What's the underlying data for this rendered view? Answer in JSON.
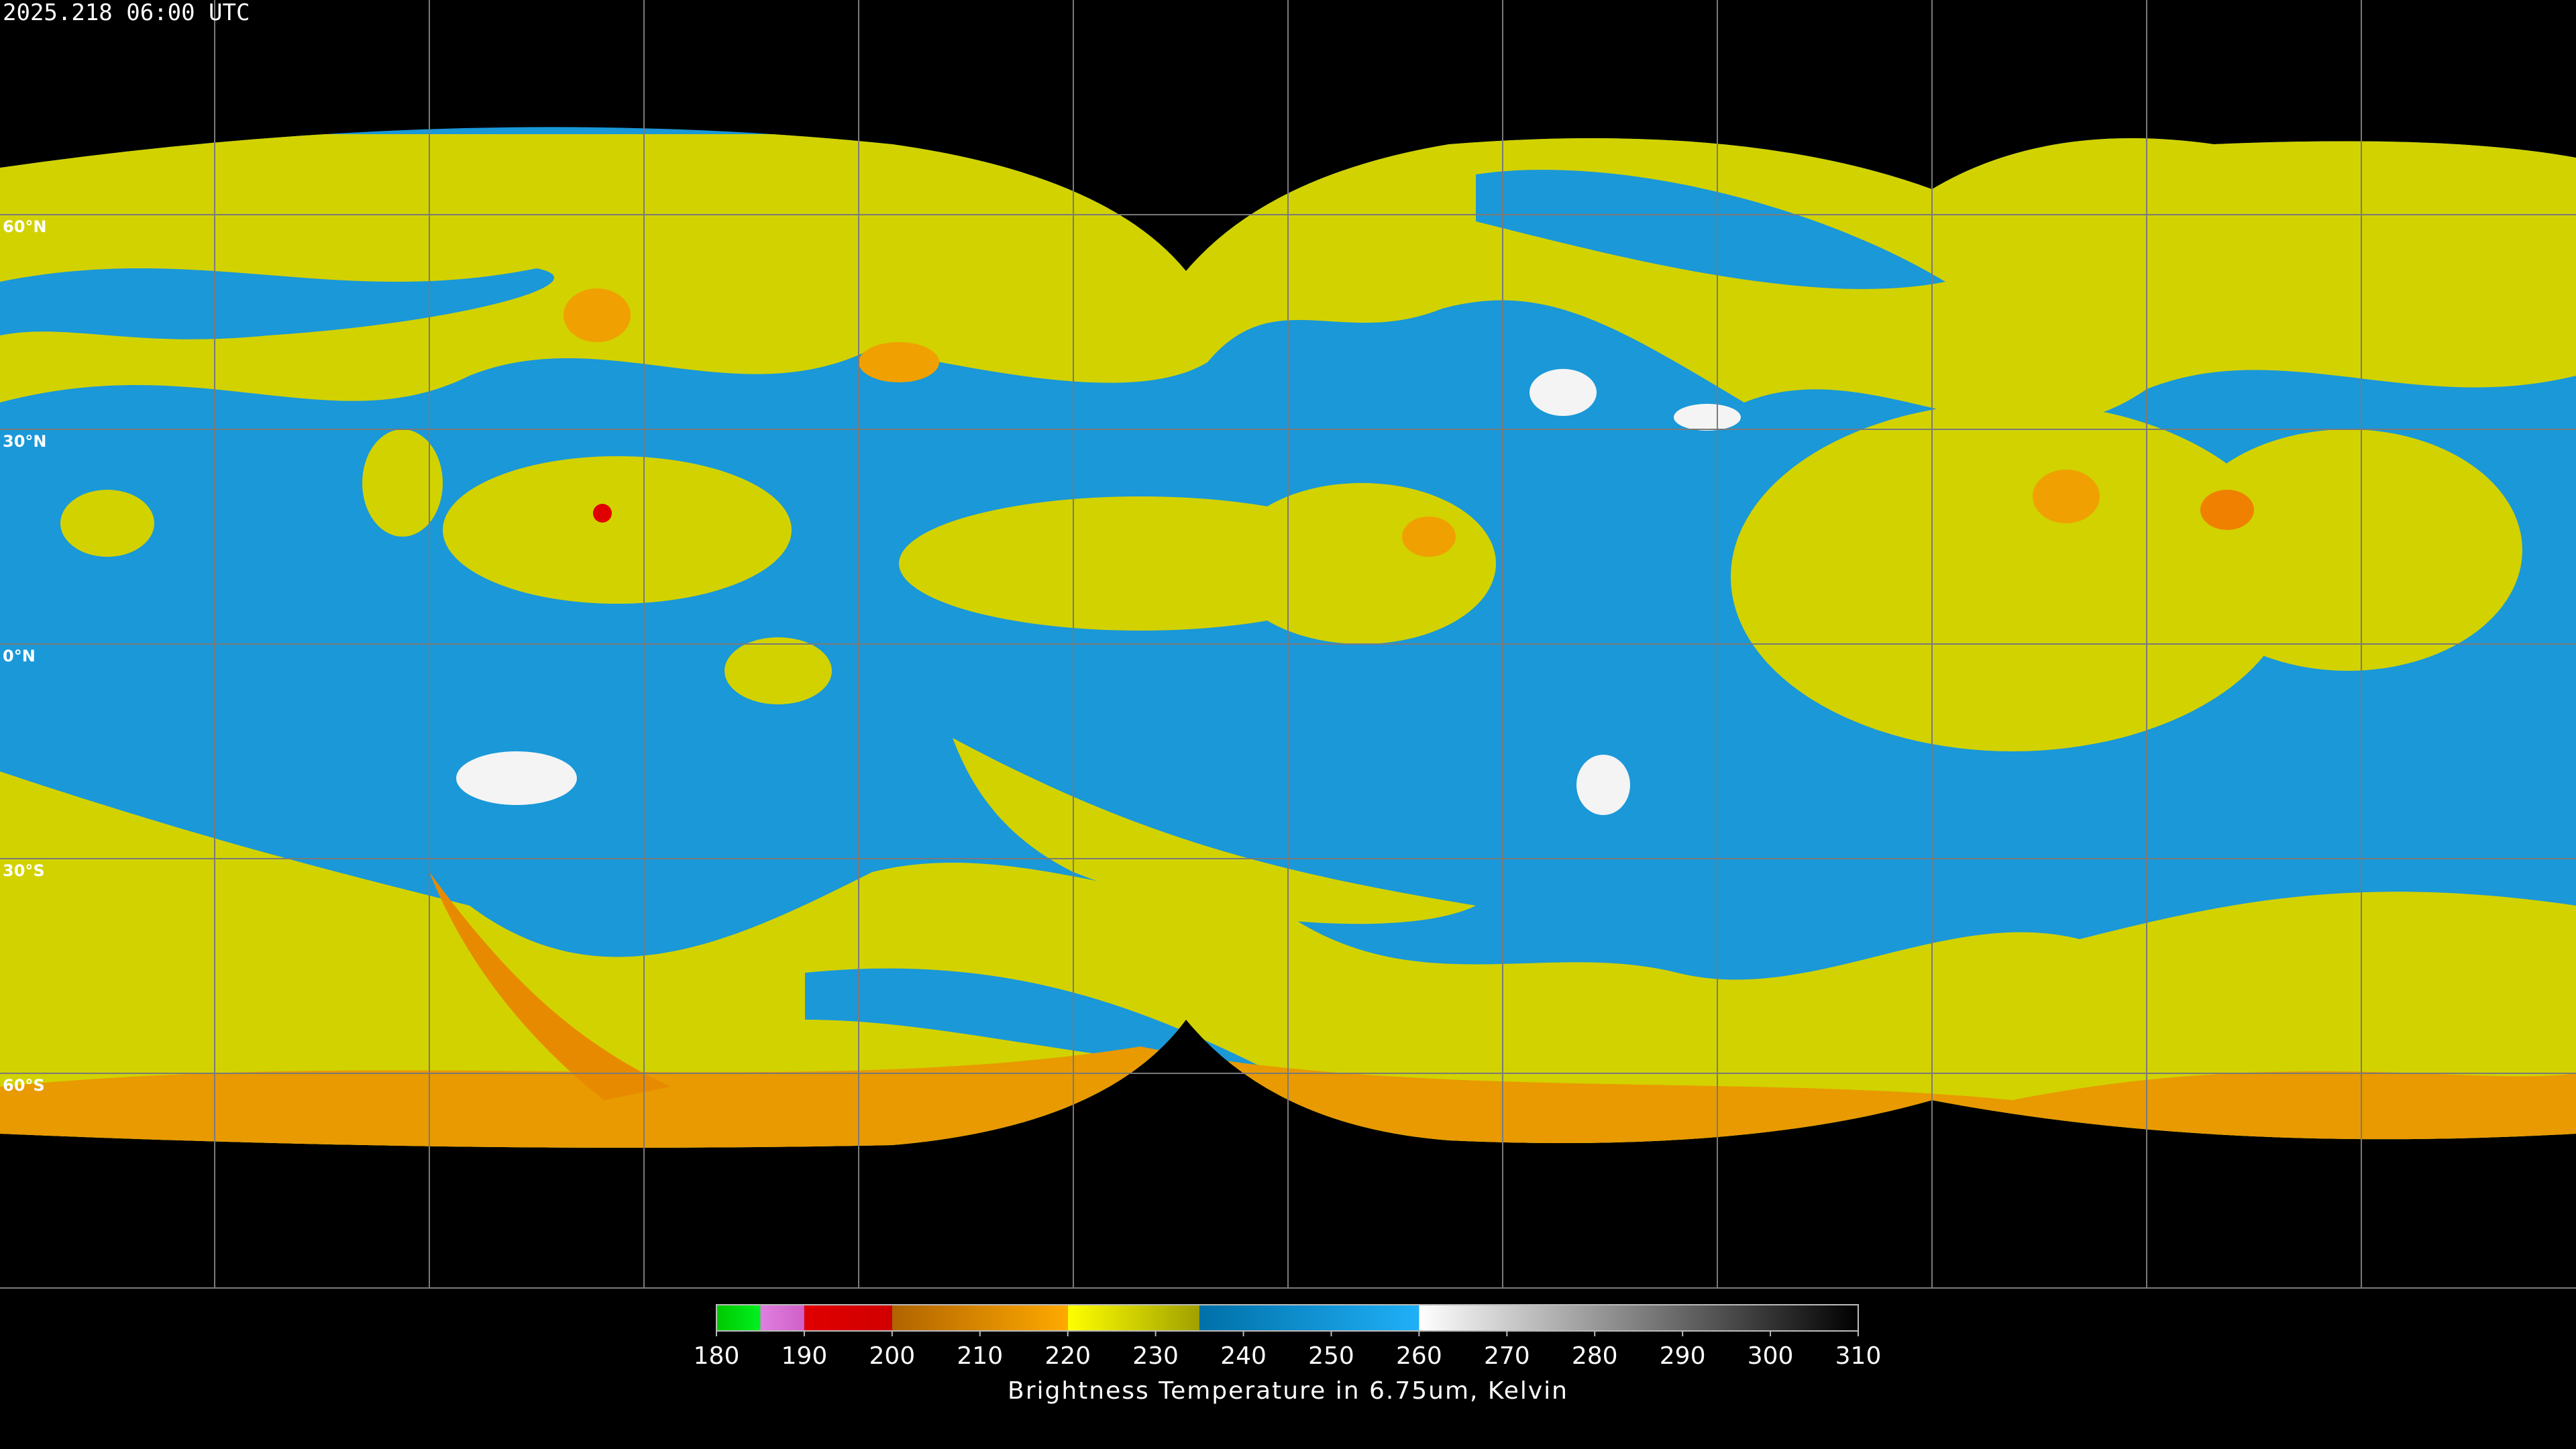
{
  "header": {
    "timestamp": "2025.218 06:00 UTC"
  },
  "map": {
    "latitudes": [
      {
        "value": 60,
        "label": "60°N"
      },
      {
        "value": 30,
        "label": "30°N"
      },
      {
        "value": 0,
        "label": "0°N"
      },
      {
        "value": -30,
        "label": "30°S"
      },
      {
        "value": -60,
        "label": "60°S"
      }
    ]
  },
  "colorbar": {
    "lim": [
      180,
      310
    ],
    "ticks": [
      180,
      190,
      200,
      210,
      220,
      230,
      240,
      250,
      260,
      270,
      280,
      290,
      300,
      310
    ],
    "segments": [
      {
        "from": 180,
        "to": 185,
        "colors": [
          "#00c800",
          "#00f020"
        ]
      },
      {
        "from": 185,
        "to": 190,
        "colors": [
          "#e080e0",
          "#d060c8"
        ]
      },
      {
        "from": 190,
        "to": 200,
        "colors": [
          "#e00000",
          "#d00000"
        ]
      },
      {
        "from": 200,
        "to": 220,
        "colors": [
          "#b06400",
          "#ffaa00"
        ]
      },
      {
        "from": 220,
        "to": 235,
        "colors": [
          "#ffff00",
          "#a0a000"
        ]
      },
      {
        "from": 235,
        "to": 260,
        "colors": [
          "#0070a8",
          "#20b0f8"
        ]
      },
      {
        "from": 260,
        "to": 310,
        "colors": [
          "#ffffff",
          "#000000"
        ]
      }
    ],
    "label": "Brightness Temperature in 6.75um, Kelvin"
  }
}
